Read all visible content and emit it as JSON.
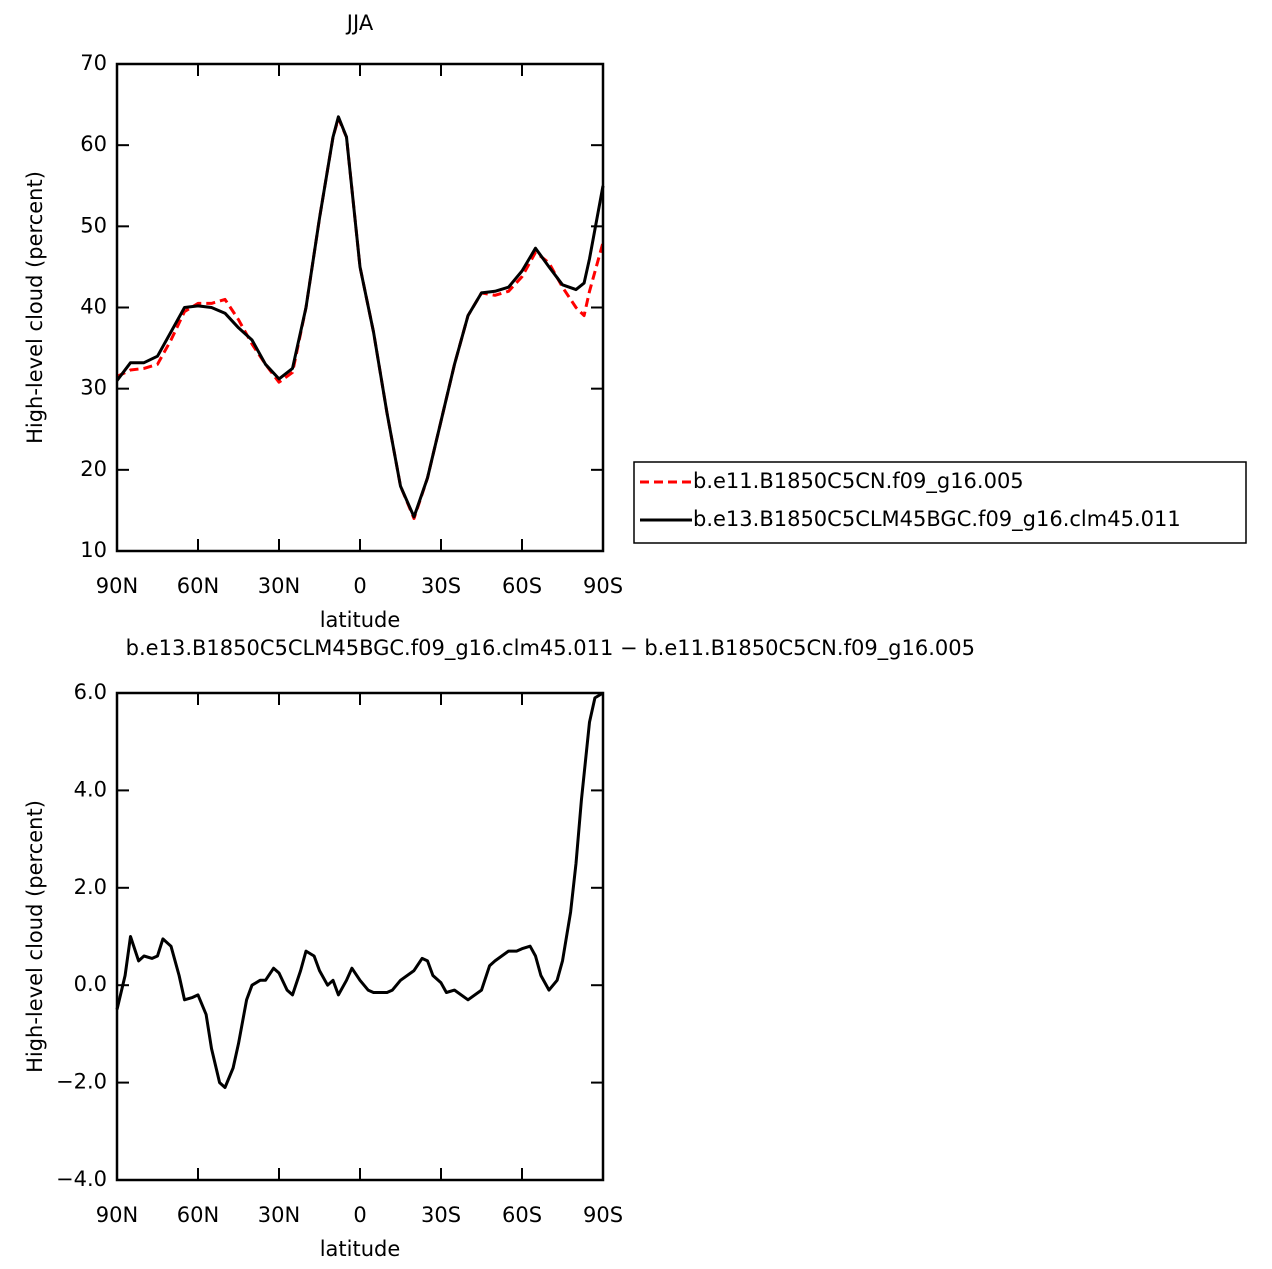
{
  "chart_data": [
    {
      "type": "line",
      "title": "JJA",
      "xlabel": "latitude",
      "ylabel": "High-level cloud (percent)",
      "x": [
        90,
        85,
        80,
        75,
        70,
        65,
        60,
        55,
        50,
        45,
        40,
        35,
        30,
        25,
        20,
        15,
        10,
        8,
        5,
        0,
        -5,
        -10,
        -15,
        -20,
        -25,
        -30,
        -35,
        -40,
        -45,
        -50,
        -55,
        -60,
        -65,
        -70,
        -75,
        -80,
        -83,
        -85,
        -90
      ],
      "series": [
        {
          "name": "b.e11.B1850C5CN.f09_g16.005",
          "color": "#ff0000",
          "dashed": true,
          "values": [
            31.5,
            32.3,
            32.5,
            33,
            36,
            39.5,
            40.5,
            40.5,
            41,
            38.5,
            35.5,
            33,
            30.8,
            32,
            40,
            51,
            61,
            63.3,
            61,
            45,
            37,
            27,
            18,
            14,
            19,
            26,
            33,
            39,
            41.8,
            41.5,
            42,
            43.8,
            46.8,
            45.5,
            42.5,
            40,
            39,
            42,
            48
          ]
        },
        {
          "name": "b.e13.B1850C5CLM45BGC.f09_g16.clm45.011",
          "color": "#000000",
          "dashed": false,
          "values": [
            31,
            33.2,
            33.2,
            34,
            37,
            40,
            40.2,
            40,
            39.3,
            37.5,
            36,
            33,
            31.2,
            32.5,
            40,
            51,
            61,
            63.5,
            61,
            45,
            37,
            27,
            18,
            14.2,
            19,
            26,
            33,
            39,
            41.8,
            42,
            42.5,
            44.5,
            47.3,
            45,
            42.8,
            42.2,
            43,
            46,
            55
          ]
        }
      ],
      "xlim": [
        90,
        -90
      ],
      "xticks": [
        {
          "value": 90,
          "label": "90N"
        },
        {
          "value": 60,
          "label": "60N"
        },
        {
          "value": 30,
          "label": "30N"
        },
        0,
        {
          "value": -30,
          "label": "30S"
        },
        {
          "value": -60,
          "label": "60S"
        },
        {
          "value": -90,
          "label": "90S"
        }
      ],
      "ylim": [
        10,
        70
      ],
      "yticks": [
        10,
        20,
        30,
        40,
        50,
        60,
        70
      ],
      "legend": "right"
    },
    {
      "type": "line",
      "title": "b.e13.B1850C5CLM45BGC.f09_g16.clm45.011 − b.e11.B1850C5CN.f09_g16.005",
      "xlabel": "latitude",
      "ylabel": "High-level cloud (percent)",
      "x": [
        90,
        87,
        85,
        82,
        80,
        77,
        75,
        73,
        71,
        70,
        67,
        65,
        62,
        60,
        57,
        55,
        52,
        50,
        47,
        45,
        42,
        40,
        37,
        35,
        32,
        30,
        27,
        25,
        22,
        20,
        17,
        15,
        12,
        10,
        8,
        5,
        3,
        0,
        -3,
        -5,
        -10,
        -12,
        -15,
        -20,
        -23,
        -25,
        -27,
        -30,
        -32,
        -35,
        -40,
        -45,
        -48,
        -50,
        -55,
        -58,
        -60,
        -63,
        -65,
        -67,
        -70,
        -73,
        -75,
        -78,
        -80,
        -82,
        -85,
        -87,
        -90
      ],
      "values": [
        -0.5,
        0.2,
        1.0,
        0.5,
        0.6,
        0.55,
        0.6,
        0.95,
        0.85,
        0.8,
        0.2,
        -0.3,
        -0.25,
        -0.2,
        -0.6,
        -1.3,
        -2.0,
        -2.1,
        -1.7,
        -1.2,
        -0.3,
        0.0,
        0.1,
        0.1,
        0.35,
        0.25,
        -0.1,
        -0.2,
        0.3,
        0.7,
        0.6,
        0.3,
        0.0,
        0.1,
        -0.2,
        0.1,
        0.35,
        0.1,
        -0.1,
        -0.15,
        -0.15,
        -0.1,
        0.1,
        0.3,
        0.55,
        0.5,
        0.2,
        0.05,
        -0.15,
        -0.1,
        -0.3,
        -0.1,
        0.4,
        0.5,
        0.7,
        0.7,
        0.75,
        0.8,
        0.6,
        0.2,
        -0.1,
        0.1,
        0.5,
        1.5,
        2.5,
        3.8,
        5.4,
        5.9,
        6.0
      ],
      "color": "#000000",
      "xlim": [
        90,
        -90
      ],
      "xticks": [
        {
          "value": 90,
          "label": "90N"
        },
        {
          "value": 60,
          "label": "60N"
        },
        {
          "value": 30,
          "label": "30N"
        },
        0,
        {
          "value": -30,
          "label": "30S"
        },
        {
          "value": -60,
          "label": "60S"
        },
        {
          "value": -90,
          "label": "90S"
        }
      ],
      "ylim": [
        -4,
        6
      ],
      "yticks": [
        {
          "value": -4,
          "label": "−4.0"
        },
        {
          "value": -2,
          "label": "−2.0"
        },
        {
          "value": 0,
          "label": "0.0"
        },
        {
          "value": 2,
          "label": "2.0"
        },
        {
          "value": 4,
          "label": "4.0"
        },
        {
          "value": 6,
          "label": "6.0"
        }
      ]
    }
  ]
}
